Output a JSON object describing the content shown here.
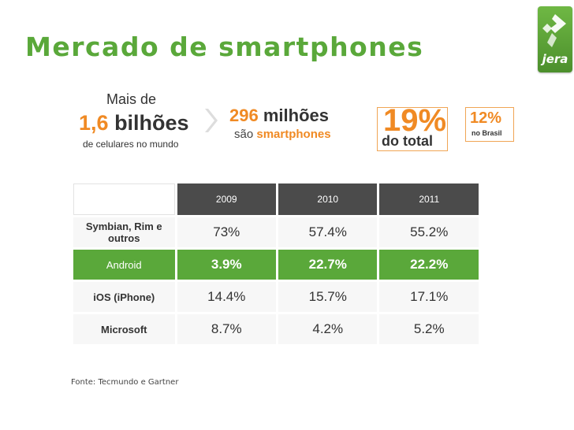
{
  "title": "Mercado de smartphones",
  "logo": {
    "word": "jera",
    "color": "#5aa83a"
  },
  "stats": {
    "total": {
      "line1": "Mais de",
      "number": "1,6",
      "unit": "bilhões",
      "caption": "de celulares no mundo"
    },
    "smart": {
      "number": "296",
      "unit": "milhões",
      "prefix": "são",
      "highlight": "smartphones"
    },
    "world": {
      "pct": "19%",
      "label": "do total"
    },
    "brasil": {
      "pct": "12%",
      "label": "no Brasil"
    }
  },
  "table": {
    "years": [
      "2009",
      "2010",
      "2011"
    ],
    "rows": [
      {
        "label": "Symbian, Rim e outros",
        "values": [
          "73%",
          "57.4%",
          "55.2%"
        ]
      },
      {
        "label": "Android",
        "values": [
          "3.9%",
          "22.7%",
          "22.2%"
        ]
      },
      {
        "label": "iOS (iPhone)",
        "values": [
          "14.4%",
          "15.7%",
          "17.1%"
        ]
      },
      {
        "label": "Microsoft",
        "values": [
          "8.7%",
          "4.2%",
          "5.2%"
        ]
      }
    ]
  },
  "source": "Fonte: Tecmundo e Gartner",
  "colors": {
    "green": "#5aa83a",
    "orange": "#f08a24",
    "header": "#4b4b4b"
  }
}
